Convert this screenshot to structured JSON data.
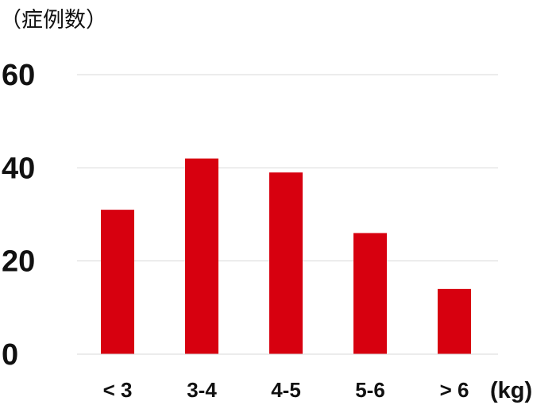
{
  "chart_data": {
    "type": "bar",
    "ylabel": "（症例数）",
    "xlabel": "(kg)",
    "categories": [
      "< 3",
      "3-4",
      "4-5",
      "5-6",
      "> 6"
    ],
    "values": [
      31,
      42,
      39,
      26,
      14
    ],
    "ylim": [
      0,
      60
    ],
    "yticks": [
      0,
      20,
      40,
      60
    ],
    "grid": true,
    "bar_color": "#d7000f"
  }
}
